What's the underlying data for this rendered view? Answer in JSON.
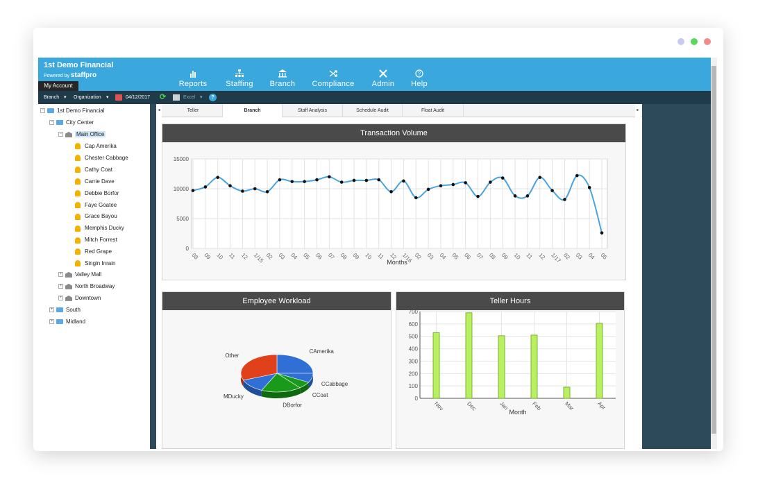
{
  "app": {
    "title": "1st Demo Financial",
    "powered_by": "Powered by",
    "brand": "staffpro",
    "my_account": "My Account"
  },
  "nav": [
    {
      "label": "Reports",
      "icon": "bar-chart-icon"
    },
    {
      "label": "Staffing",
      "icon": "org-chart-icon"
    },
    {
      "label": "Branch",
      "icon": "bank-icon"
    },
    {
      "label": "Compliance",
      "icon": "shuffle-icon"
    },
    {
      "label": "Admin",
      "icon": "tools-icon"
    },
    {
      "label": "Help",
      "icon": "help-icon"
    }
  ],
  "toolbar": {
    "branch": "Branch",
    "organization": "Organization",
    "date": "04/12/2017",
    "excel": "Excel"
  },
  "tree": {
    "root": "1st Demo Financial",
    "city_center": "City Center",
    "main_office": "Main Office",
    "people": [
      "Cap Amerika",
      "Chester Cabbage",
      "Cathy Coat",
      "Carrie Dave",
      "Debbie Borfor",
      "Faye Goatee",
      "Grace Bayou",
      "Memphis Ducky",
      "Mitch Forrest",
      "Red Grape",
      "Singin Inrain"
    ],
    "branches": [
      "Valley Mall",
      "North Broadway",
      "Downtown"
    ],
    "regions": [
      "South",
      "Midland"
    ]
  },
  "tabs": [
    "Teller",
    "Branch",
    "Staff Analysis",
    "Schedule Audit",
    "Float Audit"
  ],
  "active_tab": "Branch",
  "colors": {
    "header": "#3aa8dd",
    "line": "#4aa3df",
    "bar": "#b8f060"
  },
  "chart_data": [
    {
      "type": "line",
      "title": "Transaction Volume",
      "xlabel": "Months",
      "ylabel": "",
      "ylim": [
        0,
        15000
      ],
      "yticks": [
        "0",
        "5000",
        "10000",
        "15000"
      ],
      "categories": [
        "08",
        "09",
        "10",
        "11",
        "12",
        "1/15",
        "02",
        "03",
        "04",
        "05",
        "06",
        "07",
        "08",
        "09",
        "10",
        "11",
        "12",
        "1/16",
        "02",
        "03",
        "04",
        "05",
        "06",
        "07",
        "08",
        "09",
        "10",
        "11",
        "12",
        "1/17",
        "02",
        "03",
        "04",
        "05"
      ],
      "values": [
        9700,
        10300,
        11900,
        10500,
        9600,
        10000,
        9500,
        11500,
        11200,
        11200,
        11500,
        12000,
        11100,
        11400,
        11400,
        11500,
        9500,
        11300,
        8500,
        9900,
        10500,
        10700,
        11000,
        8700,
        11100,
        11800,
        8800,
        8800,
        11900,
        9700,
        8200,
        12200,
        10200,
        2600
      ]
    },
    {
      "type": "pie",
      "title": "Employee Workload",
      "slices": [
        {
          "label": "CAmerika",
          "value": 25,
          "color": "#2f6fd6"
        },
        {
          "label": "CCabbage",
          "value": 8,
          "color": "#2f6fd6"
        },
        {
          "label": "CCoat",
          "value": 6,
          "color": "#1a9a1a"
        },
        {
          "label": "DBorfor",
          "value": 18,
          "color": "#1a9a1a"
        },
        {
          "label": "MDucky",
          "value": 12,
          "color": "#2f6fd6"
        },
        {
          "label": "Other",
          "value": 31,
          "color": "#e0401a"
        }
      ]
    },
    {
      "type": "bar",
      "title": "Teller Hours",
      "xlabel": "Month",
      "ylabel": "",
      "ylim": [
        0,
        700
      ],
      "yticks": [
        "0",
        "100",
        "200",
        "300",
        "400",
        "500",
        "600",
        "700"
      ],
      "categories": [
        "Nov",
        "Dec",
        "Jan",
        "Feb",
        "Mar",
        "Apr"
      ],
      "values": [
        530,
        690,
        505,
        510,
        90,
        605
      ]
    }
  ]
}
